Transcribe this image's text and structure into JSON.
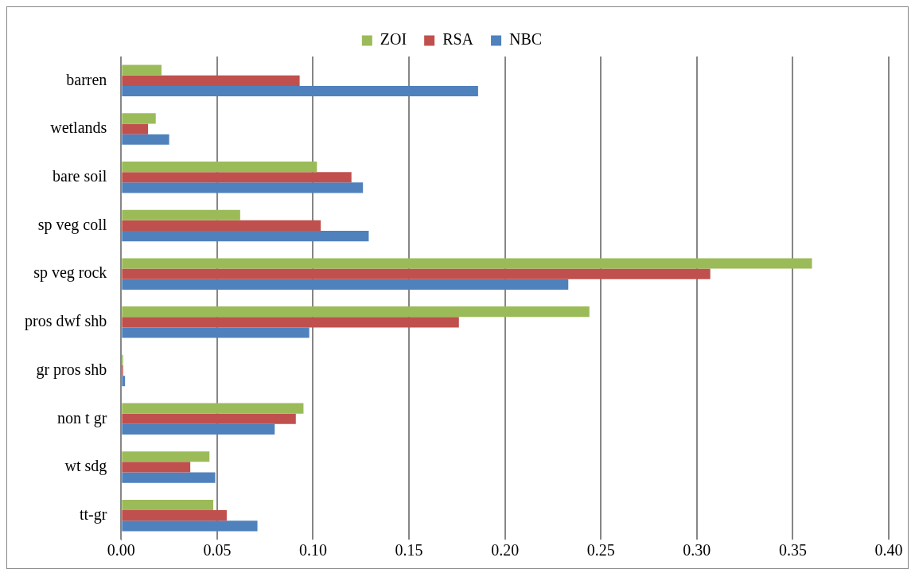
{
  "chart_data": {
    "type": "bar",
    "orientation": "horizontal",
    "categories": [
      "barren",
      "wetlands",
      "bare soil",
      "sp veg coll",
      "sp veg rock",
      "pros dwf shb",
      "gr pros shb",
      "non t gr",
      "wt sdg",
      "tt-gr"
    ],
    "series": [
      {
        "name": "ZOI",
        "color": "#9bbb59",
        "values": [
          0.021,
          0.018,
          0.102,
          0.062,
          0.36,
          0.244,
          0.001,
          0.095,
          0.046,
          0.048
        ]
      },
      {
        "name": "RSA",
        "color": "#c0504d",
        "values": [
          0.093,
          0.014,
          0.12,
          0.104,
          0.307,
          0.176,
          0.001,
          0.091,
          0.036,
          0.055
        ]
      },
      {
        "name": "NBC",
        "color": "#4f81bd",
        "values": [
          0.186,
          0.025,
          0.126,
          0.129,
          0.233,
          0.098,
          0.002,
          0.08,
          0.049,
          0.071
        ]
      }
    ],
    "xlim": [
      0,
      0.4
    ],
    "xticks": [
      {
        "value": 0,
        "label": "0.00"
      },
      {
        "value": 0.05,
        "label": "0.05"
      },
      {
        "value": 0.1,
        "label": "0.10"
      },
      {
        "value": 0.15,
        "label": "0.15"
      },
      {
        "value": 0.2,
        "label": "0.20"
      },
      {
        "value": 0.25,
        "label": "0.25"
      },
      {
        "value": 0.3,
        "label": "0.30"
      },
      {
        "value": 0.35,
        "label": "0.35"
      },
      {
        "value": 0.4,
        "label": "0.40"
      }
    ],
    "grid": "x",
    "legend": "top"
  }
}
